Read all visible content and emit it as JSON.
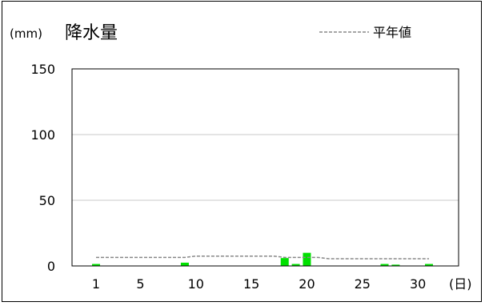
{
  "chart_data": {
    "type": "bar",
    "title": "降水量",
    "unit_label": "(mm)",
    "x_unit_label": "(日)",
    "ylim": [
      0,
      150
    ],
    "y_ticks": [
      0,
      50,
      100,
      150
    ],
    "x_ticks": [
      1,
      5,
      10,
      15,
      20,
      25,
      30
    ],
    "x_range": [
      1,
      31
    ],
    "grid": true,
    "legend_position": "top-right",
    "bar_color": "#00e000",
    "normal_line_color": "#888888",
    "series": [
      {
        "kind": "bar",
        "days": [
          1,
          2,
          3,
          4,
          5,
          6,
          7,
          8,
          9,
          10,
          11,
          12,
          13,
          14,
          15,
          16,
          17,
          18,
          19,
          20,
          21,
          22,
          23,
          24,
          25,
          26,
          27,
          28,
          29,
          30,
          31
        ],
        "values": [
          1.5,
          0,
          0,
          0,
          0,
          0,
          0,
          0,
          2.5,
          0,
          0,
          0,
          0,
          0,
          0,
          0,
          0,
          6,
          1.5,
          10,
          0,
          0,
          0,
          0,
          0,
          0,
          1.5,
          1,
          0,
          0,
          1.5
        ]
      },
      {
        "kind": "line",
        "name": "平年値",
        "days": [
          1,
          9,
          10,
          17,
          18,
          21,
          22,
          31
        ],
        "values": [
          6.5,
          6.5,
          7.5,
          7.5,
          6.5,
          6.5,
          5.5,
          5.5
        ]
      }
    ]
  }
}
